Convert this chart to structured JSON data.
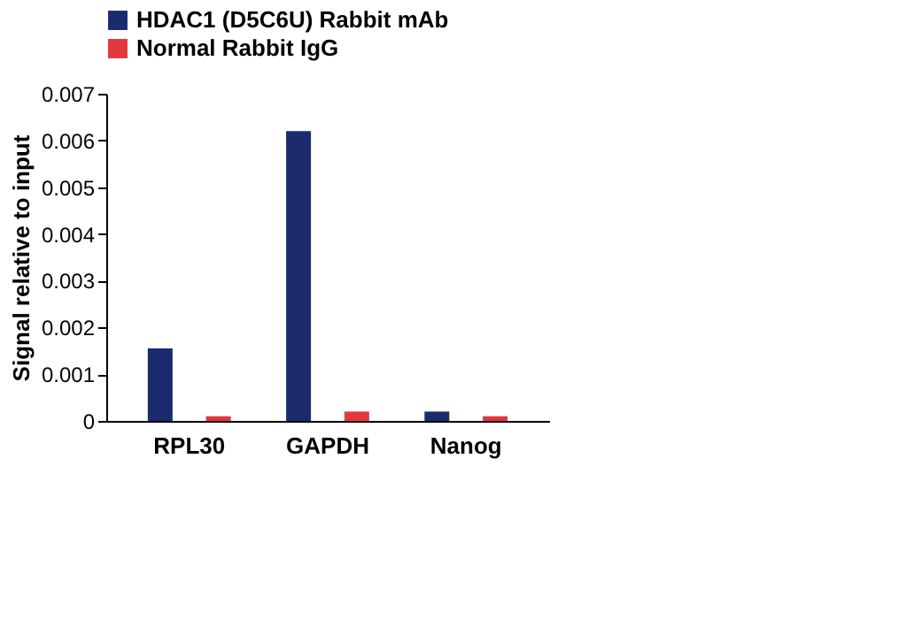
{
  "chart_data": {
    "type": "bar",
    "ylabel": "Signal relative to input",
    "categories": [
      "RPL30",
      "GAPDH",
      "Nanog"
    ],
    "series": [
      {
        "name": "HDAC1 (D5C6U) Rabbit mAb",
        "color": "#1c2a6e",
        "values": [
          0.00155,
          0.0062,
          0.0002
        ]
      },
      {
        "name": "Normal Rabbit IgG",
        "color": "#e2373c",
        "values": [
          0.0001,
          0.0002,
          0.0001
        ]
      }
    ],
    "ylim": [
      0,
      0.007
    ],
    "yticks": [
      0,
      0.001,
      0.002,
      0.003,
      0.004,
      0.005,
      0.006,
      0.007
    ],
    "grid": false,
    "legend": "top"
  }
}
